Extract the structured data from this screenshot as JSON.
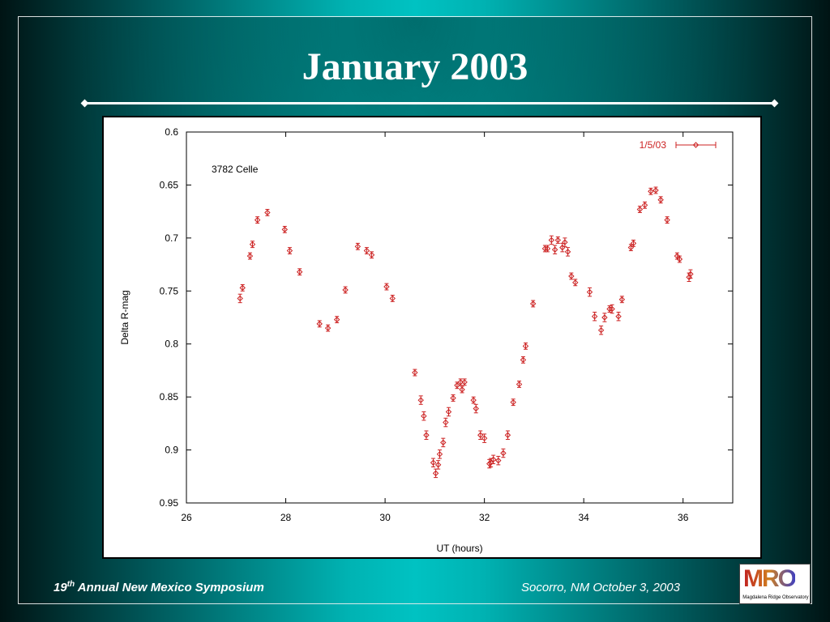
{
  "slide": {
    "title": "January 2003",
    "footer_left_prefix": "19",
    "footer_left_sup": "th",
    "footer_left_suffix": " Annual New Mexico Symposium",
    "footer_right": "Socorro, NM October 3, 2003",
    "logo_text": "MRO",
    "logo_subtitle": "Magdalena Ridge Observatory"
  },
  "colors": {
    "series": "#cc2222",
    "axis": "#000000"
  },
  "chart_data": {
    "type": "scatter",
    "xlabel": "UT (hours)",
    "ylabel": "Delta R-mag",
    "annotation": "3782 Celle",
    "legend_position": "top-right",
    "error_bars": true,
    "y_inverted": true,
    "xlim": [
      26,
      37
    ],
    "ylim": [
      0.6,
      0.95
    ],
    "x_ticks": [
      26,
      28,
      30,
      32,
      34,
      36
    ],
    "y_ticks": [
      0.6,
      0.65,
      0.7,
      0.75,
      0.8,
      0.85,
      0.9,
      0.95
    ],
    "series": [
      {
        "name": "1/5/03",
        "points": [
          [
            27.08,
            0.757,
            0.004
          ],
          [
            27.13,
            0.747,
            0.003
          ],
          [
            27.28,
            0.717,
            0.003
          ],
          [
            27.33,
            0.706,
            0.003
          ],
          [
            27.43,
            0.683,
            0.003
          ],
          [
            27.63,
            0.676,
            0.003
          ],
          [
            27.98,
            0.692,
            0.003
          ],
          [
            28.08,
            0.712,
            0.003
          ],
          [
            28.28,
            0.732,
            0.003
          ],
          [
            28.68,
            0.781,
            0.003
          ],
          [
            28.85,
            0.785,
            0.003
          ],
          [
            29.03,
            0.777,
            0.003
          ],
          [
            29.2,
            0.749,
            0.003
          ],
          [
            29.45,
            0.708,
            0.003
          ],
          [
            29.63,
            0.712,
            0.003
          ],
          [
            29.73,
            0.716,
            0.003
          ],
          [
            30.03,
            0.746,
            0.003
          ],
          [
            30.15,
            0.757,
            0.003
          ],
          [
            30.6,
            0.827,
            0.003
          ],
          [
            30.72,
            0.853,
            0.004
          ],
          [
            30.78,
            0.868,
            0.004
          ],
          [
            30.83,
            0.886,
            0.004
          ],
          [
            30.97,
            0.912,
            0.004
          ],
          [
            31.02,
            0.922,
            0.004
          ],
          [
            31.07,
            0.914,
            0.004
          ],
          [
            31.1,
            0.904,
            0.004
          ],
          [
            31.17,
            0.893,
            0.004
          ],
          [
            31.22,
            0.874,
            0.004
          ],
          [
            31.28,
            0.864,
            0.004
          ],
          [
            31.37,
            0.851,
            0.003
          ],
          [
            31.45,
            0.839,
            0.003
          ],
          [
            31.52,
            0.836,
            0.003
          ],
          [
            31.55,
            0.843,
            0.003
          ],
          [
            31.6,
            0.836,
            0.003
          ],
          [
            31.78,
            0.853,
            0.003
          ],
          [
            31.83,
            0.861,
            0.004
          ],
          [
            31.92,
            0.886,
            0.004
          ],
          [
            32.0,
            0.889,
            0.004
          ],
          [
            32.1,
            0.913,
            0.004
          ],
          [
            32.13,
            0.912,
            0.004
          ],
          [
            32.18,
            0.909,
            0.004
          ],
          [
            32.28,
            0.91,
            0.004
          ],
          [
            32.38,
            0.903,
            0.004
          ],
          [
            32.47,
            0.886,
            0.004
          ],
          [
            32.58,
            0.855,
            0.003
          ],
          [
            32.7,
            0.838,
            0.003
          ],
          [
            32.78,
            0.815,
            0.003
          ],
          [
            32.83,
            0.802,
            0.003
          ],
          [
            32.98,
            0.762,
            0.003
          ],
          [
            33.22,
            0.71,
            0.003
          ],
          [
            33.27,
            0.71,
            0.003
          ],
          [
            33.35,
            0.702,
            0.004
          ],
          [
            33.42,
            0.711,
            0.004
          ],
          [
            33.48,
            0.702,
            0.003
          ],
          [
            33.57,
            0.709,
            0.004
          ],
          [
            33.62,
            0.704,
            0.004
          ],
          [
            33.68,
            0.713,
            0.004
          ],
          [
            33.75,
            0.736,
            0.003
          ],
          [
            33.83,
            0.742,
            0.003
          ],
          [
            34.12,
            0.751,
            0.004
          ],
          [
            34.22,
            0.774,
            0.004
          ],
          [
            34.35,
            0.787,
            0.004
          ],
          [
            34.42,
            0.775,
            0.004
          ],
          [
            34.52,
            0.767,
            0.003
          ],
          [
            34.57,
            0.767,
            0.004
          ],
          [
            34.7,
            0.774,
            0.004
          ],
          [
            34.77,
            0.758,
            0.003
          ],
          [
            34.95,
            0.709,
            0.003
          ],
          [
            35.0,
            0.705,
            0.003
          ],
          [
            35.13,
            0.673,
            0.003
          ],
          [
            35.23,
            0.669,
            0.003
          ],
          [
            35.35,
            0.656,
            0.003
          ],
          [
            35.45,
            0.655,
            0.003
          ],
          [
            35.55,
            0.664,
            0.003
          ],
          [
            35.68,
            0.683,
            0.003
          ],
          [
            35.88,
            0.717,
            0.003
          ],
          [
            35.93,
            0.72,
            0.003
          ],
          [
            36.12,
            0.737,
            0.004
          ],
          [
            36.15,
            0.734,
            0.004
          ]
        ]
      }
    ]
  }
}
